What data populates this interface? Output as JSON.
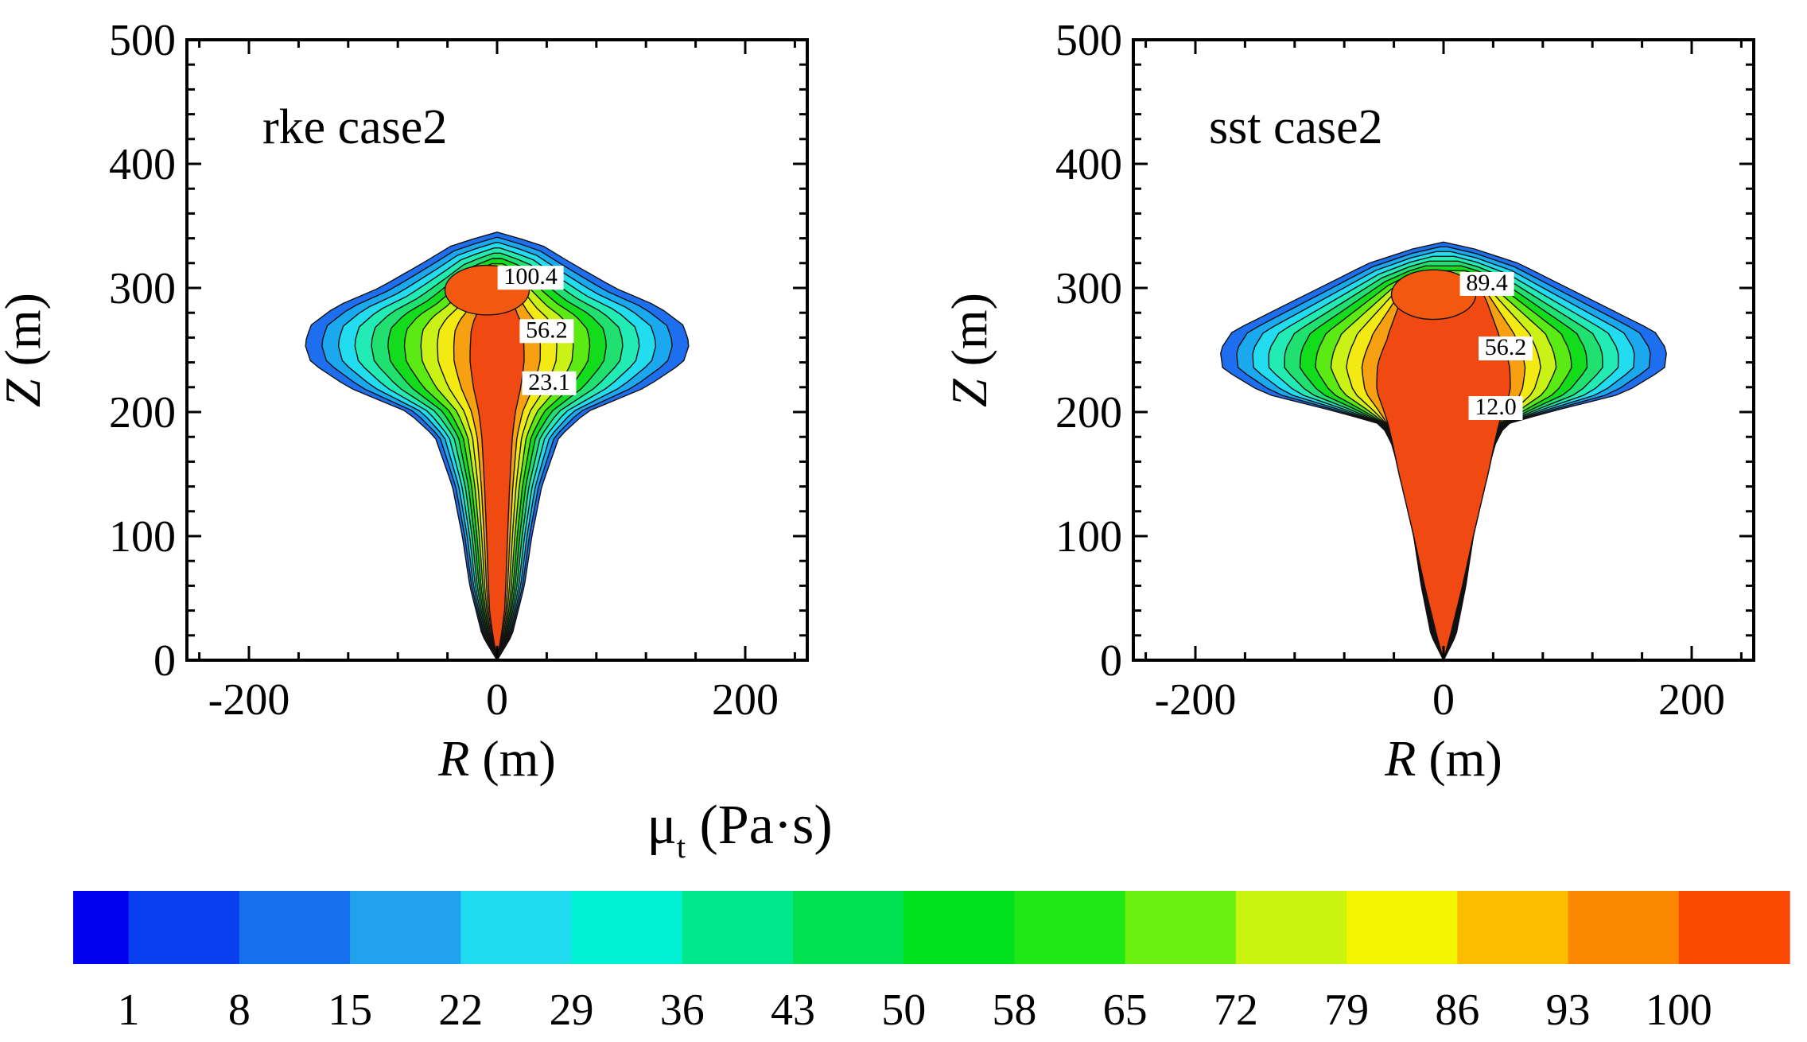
{
  "chart_data": [
    {
      "type": "contour",
      "title": "rke case2",
      "xlabel_symbol": "R",
      "xlabel_unit": " (m)",
      "ylabel_symbol": "Z",
      "ylabel_unit": " (m)",
      "xlim": [
        -250,
        250
      ],
      "ylim": [
        0,
        500
      ],
      "xticks": [
        -200,
        0,
        200
      ],
      "yticks": [
        0,
        100,
        200,
        300,
        400,
        500
      ],
      "grid": false,
      "plume": {
        "outer_halfwidth": [
          [
            0,
            0
          ],
          [
            20,
            12
          ],
          [
            60,
            22
          ],
          [
            100,
            28
          ],
          [
            140,
            36
          ],
          [
            180,
            50
          ],
          [
            200,
            72
          ],
          [
            220,
            120
          ],
          [
            240,
            150
          ],
          [
            255,
            155
          ],
          [
            270,
            150
          ],
          [
            285,
            130
          ],
          [
            300,
            95
          ],
          [
            320,
            60
          ],
          [
            335,
            35
          ],
          [
            345,
            0
          ]
        ],
        "stem_halfwidth": [
          [
            0,
            0
          ],
          [
            40,
            5
          ],
          [
            80,
            6
          ],
          [
            120,
            7
          ],
          [
            160,
            8
          ],
          [
            200,
            9
          ],
          [
            240,
            9
          ],
          [
            260,
            8
          ]
        ]
      },
      "contour_labels": [
        {
          "text": "100.4",
          "r": 27,
          "z": 305
        },
        {
          "text": "56.2",
          "r": 40,
          "z": 262
        },
        {
          "text": "23.1",
          "r": 42,
          "z": 220
        }
      ]
    },
    {
      "type": "contour",
      "title": "sst case2",
      "xlabel_symbol": "R",
      "xlabel_unit": " (m)",
      "ylabel_symbol": "Z",
      "ylabel_unit": " (m)",
      "xlim": [
        -250,
        250
      ],
      "ylim": [
        0,
        500
      ],
      "xticks": [
        -200,
        0,
        200
      ],
      "yticks": [
        0,
        100,
        200,
        300,
        400,
        500
      ],
      "grid": false,
      "plume": {
        "outer_halfwidth": [
          [
            0,
            0
          ],
          [
            20,
            10
          ],
          [
            60,
            18
          ],
          [
            100,
            24
          ],
          [
            140,
            32
          ],
          [
            175,
            42
          ],
          [
            190,
            50
          ],
          [
            200,
            85
          ],
          [
            215,
            145
          ],
          [
            235,
            178
          ],
          [
            250,
            180
          ],
          [
            265,
            170
          ],
          [
            280,
            140
          ],
          [
            300,
            100
          ],
          [
            320,
            60
          ],
          [
            333,
            20
          ],
          [
            337,
            0
          ]
        ],
        "stem_halfwidth": [
          [
            0,
            0
          ],
          [
            60,
            15
          ],
          [
            100,
            24
          ],
          [
            150,
            36
          ],
          [
            190,
            44
          ],
          [
            220,
            44
          ],
          [
            240,
            40
          ],
          [
            260,
            32
          ]
        ]
      },
      "contour_labels": [
        {
          "text": "89.4",
          "r": 35,
          "z": 300
        },
        {
          "text": "56.2",
          "r": 50,
          "z": 248
        },
        {
          "text": "12.0",
          "r": 42,
          "z": 200
        }
      ]
    }
  ],
  "colorbar": {
    "title_symbol": "μ",
    "title_subscript": "t",
    "title_unit": " (Pa·s)",
    "ticks": [
      "1",
      "8",
      "15",
      "22",
      "29",
      "36",
      "43",
      "50",
      "58",
      "65",
      "72",
      "79",
      "86",
      "93",
      "100"
    ],
    "colors": [
      "#0000ee",
      "#0a3ff0",
      "#1570ee",
      "#22a2ee",
      "#1fdbf0",
      "#00f0d4",
      "#00e88c",
      "#00e050",
      "#00e21d",
      "#20e816",
      "#6cf010",
      "#c8f410",
      "#f4f400",
      "#fcbc00",
      "#fc8800",
      "#fa4800",
      "#f40000"
    ]
  },
  "style": {
    "level_colors": [
      "#1e6fef",
      "#1aa8ef",
      "#22dcef",
      "#22ecb4",
      "#20e070",
      "#12dc1c",
      "#5cea14",
      "#cbf216",
      "#f2ea12",
      "#f6a012",
      "#f04a12"
    ]
  }
}
